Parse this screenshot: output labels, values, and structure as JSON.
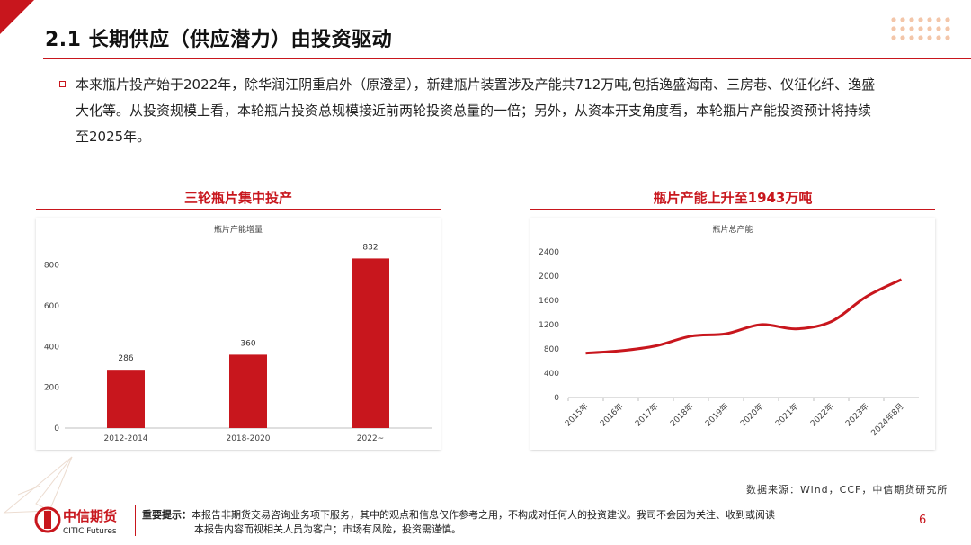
{
  "header": {
    "title": "2.1 长期供应（供应潜力）由投资驱动"
  },
  "body": {
    "paragraph_lines": [
      "本来瓶片投产始于2022年，除华润江阴重启外（原澄星），新建瓶片装置涉及产能共712万吨,包括逸盛海南、三房巷、仪征化纤、逸盛",
      "大化等。从投资规模上看，本轮瓶片投资总规模接近前两轮投资总量的一倍；另外，从资本开支角度看，本轮瓶片产能投资预计将持续",
      "至2025年。"
    ]
  },
  "left_chart_header": "三轮瓶片集中投产",
  "right_chart_header": "瓶片产能上升至1943万吨",
  "chart_data": [
    {
      "type": "bar",
      "title": "瓶片产能增量",
      "categories": [
        "2012-2014",
        "2018-2020",
        "2022~"
      ],
      "values": [
        286,
        360,
        832
      ],
      "ylim": [
        0,
        900
      ],
      "yticks": [
        0,
        200,
        400,
        600,
        800
      ],
      "color": "#c8161d",
      "grid": false
    },
    {
      "type": "line",
      "title": "瓶片总产能",
      "x": [
        "2015年",
        "2016年",
        "2017年",
        "2018年",
        "2019年",
        "2020年",
        "2021年",
        "2022年",
        "2023年",
        "2024年8月"
      ],
      "values": [
        730,
        770,
        850,
        1010,
        1050,
        1200,
        1130,
        1250,
        1660,
        1943
      ],
      "ylim": [
        0,
        2400
      ],
      "yticks": [
        0,
        400,
        800,
        1200,
        1600,
        2000,
        2400
      ],
      "color": "#c8161d",
      "grid": false
    }
  ],
  "footer": {
    "source": "数据来源：Wind，CCF，中信期货研究所",
    "logo_cn": "中信期货",
    "logo_en": "CITIC Futures",
    "disclaimer_label": "重要提示：",
    "disclaimer_line1": "本报告非期货交易咨询业务项下服务，其中的观点和信息仅作参考之用，不构成对任何人的投资建议。我司不会因为关注、收到或阅读",
    "disclaimer_line2": "本报告内容而视相关人员为客户；市场有风险，投资需谨慎。",
    "page_number": "6"
  }
}
